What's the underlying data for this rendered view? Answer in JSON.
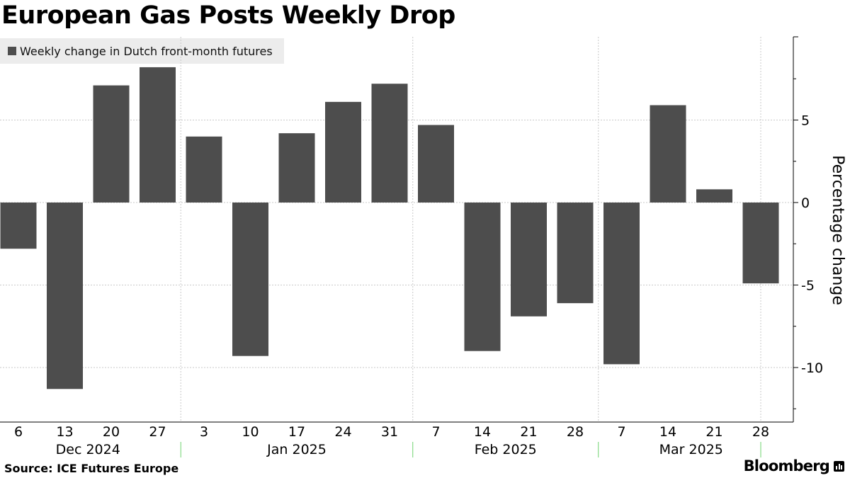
{
  "title": "European Gas Posts Weekly Drop",
  "legend": {
    "label": "Weekly change in Dutch front-month futures",
    "color": "#4d4d4d"
  },
  "source": "Source: ICE Futures Europe",
  "brand": "Bloomberg",
  "chart_data": {
    "type": "bar",
    "categories": [
      "6",
      "13",
      "20",
      "27",
      "3",
      "10",
      "17",
      "24",
      "31",
      "7",
      "14",
      "21",
      "28",
      "7",
      "14",
      "21",
      "28"
    ],
    "month_groups": [
      {
        "label": "Dec 2024",
        "start": 0,
        "end": 3
      },
      {
        "label": "Jan 2025",
        "start": 4,
        "end": 8
      },
      {
        "label": "Feb 2025",
        "start": 9,
        "end": 12
      },
      {
        "label": "Mar 2025",
        "start": 13,
        "end": 16
      }
    ],
    "series": [
      {
        "name": "Weekly change in Dutch front-month futures",
        "values": [
          -2.8,
          -11.3,
          7.1,
          8.2,
          4.0,
          -9.3,
          4.2,
          6.1,
          7.2,
          4.7,
          -9.0,
          -6.9,
          -6.1,
          -9.8,
          5.9,
          0.8,
          -4.9
        ]
      }
    ],
    "ylabel": "Percentage change",
    "ylim": [
      -13.2,
      10.0
    ],
    "yticks": [
      5,
      0,
      -5,
      -10
    ],
    "ytick_labels": [
      "5",
      "0",
      "-5",
      "-10"
    ],
    "y_axis_position": "right",
    "grid": true,
    "legend_position": "top-left",
    "bar_color": "#4d4d4d"
  }
}
